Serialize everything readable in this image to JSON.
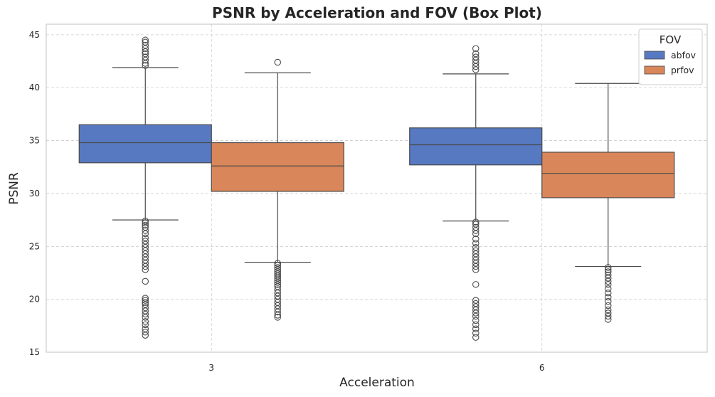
{
  "chart_data": {
    "type": "box",
    "title": "PSNR by Acceleration and FOV (Box Plot)",
    "xlabel": "Acceleration",
    "ylabel": "PSNR",
    "categories": [
      "3",
      "6"
    ],
    "ylim": [
      15,
      46
    ],
    "yticks": [
      15,
      20,
      25,
      30,
      35,
      40,
      45
    ],
    "grid": true,
    "legend": {
      "title": "FOV",
      "position": "top-right"
    },
    "series": [
      {
        "name": "abfov",
        "color": "#5779C1",
        "boxes": [
          {
            "category": "3",
            "whisker_low": 27.5,
            "q1": 32.9,
            "median": 34.8,
            "q3": 36.5,
            "whisker_high": 41.9,
            "outliers": [
              44.5,
              44.3,
              44.0,
              43.7,
              43.4,
              43.2,
              42.9,
              42.6,
              42.3,
              42.1,
              27.4,
              27.2,
              27.0,
              26.8,
              26.5,
              26.2,
              25.8,
              25.5,
              25.2,
              24.9,
              24.6,
              24.3,
              24.0,
              23.7,
              23.4,
              23.1,
              22.8,
              21.7,
              20.1,
              19.9,
              19.7,
              19.5,
              19.2,
              18.9,
              18.6,
              18.3,
              17.9,
              17.6,
              17.2,
              16.9,
              16.6
            ]
          },
          {
            "category": "6",
            "whisker_low": 27.4,
            "q1": 32.7,
            "median": 34.6,
            "q3": 36.2,
            "whisker_high": 41.3,
            "outliers": [
              43.7,
              43.2,
              42.9,
              42.6,
              42.3,
              42.0,
              41.7,
              27.3,
              27.1,
              26.8,
              26.5,
              26.2,
              25.7,
              25.3,
              24.9,
              24.6,
              24.3,
              24.0,
              23.7,
              23.4,
              23.1,
              22.8,
              21.4,
              19.9,
              19.6,
              19.3,
              19.0,
              18.7,
              18.4,
              18.0,
              17.6,
              17.2,
              16.8,
              16.4
            ]
          }
        ]
      },
      {
        "name": "prfov",
        "color": "#D9875A",
        "boxes": [
          {
            "category": "3",
            "whisker_low": 23.5,
            "q1": 30.2,
            "median": 32.6,
            "q3": 34.8,
            "whisker_high": 41.4,
            "outliers": [
              42.4,
              23.4,
              23.2,
              23.0,
              22.8,
              22.6,
              22.4,
              22.2,
              22.0,
              21.8,
              21.6,
              21.4,
              21.2,
              20.9,
              20.6,
              20.3,
              20.0,
              19.7,
              19.4,
              19.1,
              18.8,
              18.5,
              18.3
            ]
          },
          {
            "category": "6",
            "whisker_low": 23.1,
            "q1": 29.6,
            "median": 31.9,
            "q3": 33.9,
            "whisker_high": 40.4,
            "outliers": [
              23.0,
              22.8,
              22.6,
              22.3,
              22.0,
              21.7,
              21.4,
              21.0,
              20.6,
              20.2,
              19.8,
              19.4,
              19.0,
              18.7,
              18.4,
              18.1
            ]
          }
        ]
      }
    ]
  }
}
